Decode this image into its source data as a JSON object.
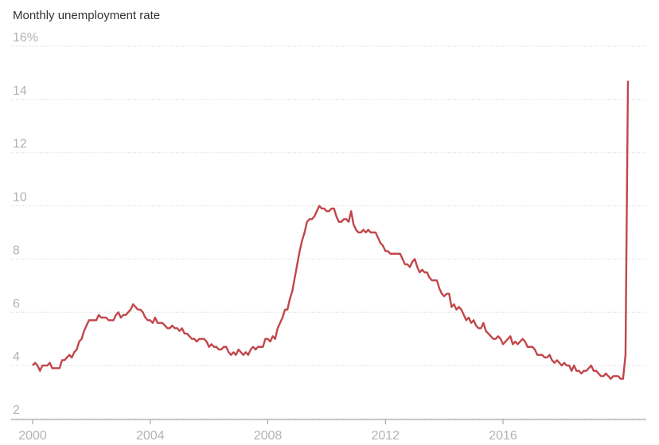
{
  "chart_data": {
    "type": "line",
    "title": "Monthly unemployment rate",
    "categories": [
      "2000",
      null,
      null,
      null,
      null,
      null,
      null,
      null,
      null,
      null,
      null,
      null,
      null,
      null,
      null,
      null,
      null,
      null,
      null,
      null,
      null,
      null,
      null,
      null,
      null,
      null,
      null,
      null,
      null,
      null,
      null,
      null,
      null,
      null,
      null,
      null,
      null,
      null,
      null,
      null,
      null,
      null,
      null,
      null,
      null,
      null,
      null,
      null,
      "2004",
      null,
      null,
      null,
      null,
      null,
      null,
      null,
      null,
      null,
      null,
      null,
      null,
      null,
      null,
      null,
      null,
      null,
      null,
      null,
      null,
      null,
      null,
      null,
      null,
      null,
      null,
      null,
      null,
      null,
      null,
      null,
      null,
      null,
      null,
      null,
      null,
      null,
      null,
      null,
      null,
      null,
      null,
      null,
      null,
      null,
      null,
      null,
      "2008",
      null,
      null,
      null,
      null,
      null,
      null,
      null,
      null,
      null,
      null,
      null,
      null,
      null,
      null,
      null,
      null,
      null,
      null,
      null,
      null,
      null,
      null,
      null,
      null,
      null,
      null,
      null,
      null,
      null,
      null,
      null,
      null,
      null,
      null,
      null,
      null,
      null,
      null,
      null,
      null,
      null,
      null,
      null,
      null,
      null,
      null,
      null,
      "2012",
      null,
      null,
      null,
      null,
      null,
      null,
      null,
      null,
      null,
      null,
      null,
      null,
      null,
      null,
      null,
      null,
      null,
      null,
      null,
      null,
      null,
      null,
      null,
      null,
      null,
      null,
      null,
      null,
      null,
      null,
      null,
      null,
      null,
      null,
      null,
      null,
      null,
      null,
      null,
      null,
      null,
      null,
      null,
      null,
      null,
      null,
      null,
      "2016",
      null,
      null,
      null,
      null,
      null,
      null,
      null,
      null,
      null,
      null,
      null,
      null,
      null,
      null,
      null,
      null,
      null,
      null,
      null,
      null,
      null,
      null,
      null,
      null,
      null,
      null,
      null,
      null,
      null,
      null,
      null,
      null,
      null,
      null,
      null,
      null,
      null,
      null,
      null,
      null,
      null,
      null,
      null,
      null,
      null,
      null,
      null,
      null,
      null,
      null,
      null
    ],
    "series": [
      {
        "color": "#c1464a",
        "values": [
          4.0,
          4.1,
          4.0,
          3.8,
          4.0,
          4.0,
          4.0,
          4.1,
          3.9,
          3.9,
          3.9,
          3.9,
          4.2,
          4.2,
          4.3,
          4.4,
          4.3,
          4.5,
          4.6,
          4.9,
          5.0,
          5.3,
          5.5,
          5.7,
          5.7,
          5.7,
          5.7,
          5.9,
          5.8,
          5.8,
          5.8,
          5.7,
          5.7,
          5.7,
          5.9,
          6.0,
          5.8,
          5.9,
          5.9,
          6.0,
          6.1,
          6.3,
          6.2,
          6.1,
          6.1,
          6.0,
          5.8,
          5.7,
          5.7,
          5.6,
          5.8,
          5.6,
          5.6,
          5.6,
          5.5,
          5.4,
          5.4,
          5.5,
          5.4,
          5.4,
          5.3,
          5.4,
          5.2,
          5.2,
          5.1,
          5.0,
          5.0,
          4.9,
          5.0,
          5.0,
          5.0,
          4.9,
          4.7,
          4.8,
          4.7,
          4.7,
          4.6,
          4.6,
          4.7,
          4.7,
          4.5,
          4.4,
          4.5,
          4.4,
          4.6,
          4.5,
          4.4,
          4.5,
          4.4,
          4.6,
          4.7,
          4.6,
          4.7,
          4.7,
          4.7,
          5.0,
          5.0,
          4.9,
          5.1,
          5.0,
          5.4,
          5.6,
          5.8,
          6.1,
          6.1,
          6.5,
          6.8,
          7.3,
          7.8,
          8.3,
          8.7,
          9.0,
          9.4,
          9.5,
          9.5,
          9.6,
          9.8,
          10.0,
          9.9,
          9.9,
          9.8,
          9.8,
          9.9,
          9.9,
          9.6,
          9.4,
          9.4,
          9.5,
          9.5,
          9.4,
          9.8,
          9.3,
          9.1,
          9.0,
          9.0,
          9.1,
          9.0,
          9.1,
          9.0,
          9.0,
          9.0,
          8.8,
          8.6,
          8.5,
          8.3,
          8.3,
          8.2,
          8.2,
          8.2,
          8.2,
          8.2,
          8.0,
          7.8,
          7.8,
          7.7,
          7.9,
          8.0,
          7.7,
          7.5,
          7.6,
          7.5,
          7.5,
          7.3,
          7.2,
          7.2,
          7.2,
          6.9,
          6.7,
          6.6,
          6.7,
          6.7,
          6.2,
          6.3,
          6.1,
          6.2,
          6.1,
          5.9,
          5.7,
          5.8,
          5.6,
          5.7,
          5.5,
          5.4,
          5.4,
          5.6,
          5.3,
          5.2,
          5.1,
          5.0,
          5.0,
          5.1,
          5.0,
          4.8,
          4.9,
          5.0,
          5.1,
          4.8,
          4.9,
          4.8,
          4.9,
          5.0,
          4.9,
          4.7,
          4.7,
          4.7,
          4.6,
          4.4,
          4.4,
          4.4,
          4.3,
          4.3,
          4.4,
          4.2,
          4.1,
          4.2,
          4.1,
          4.0,
          4.1,
          4.0,
          4.0,
          3.8,
          4.0,
          3.8,
          3.8,
          3.7,
          3.8,
          3.8,
          3.9,
          4.0,
          3.8,
          3.8,
          3.7,
          3.6,
          3.6,
          3.7,
          3.6,
          3.5,
          3.6,
          3.6,
          3.6,
          3.5,
          3.5,
          4.4,
          14.7
        ]
      }
    ],
    "ylim": [
      2,
      16
    ],
    "yticks": [
      2,
      4,
      6,
      8,
      10,
      12,
      14,
      {
        "value": 16,
        "label": "16%"
      }
    ],
    "grid": true
  }
}
